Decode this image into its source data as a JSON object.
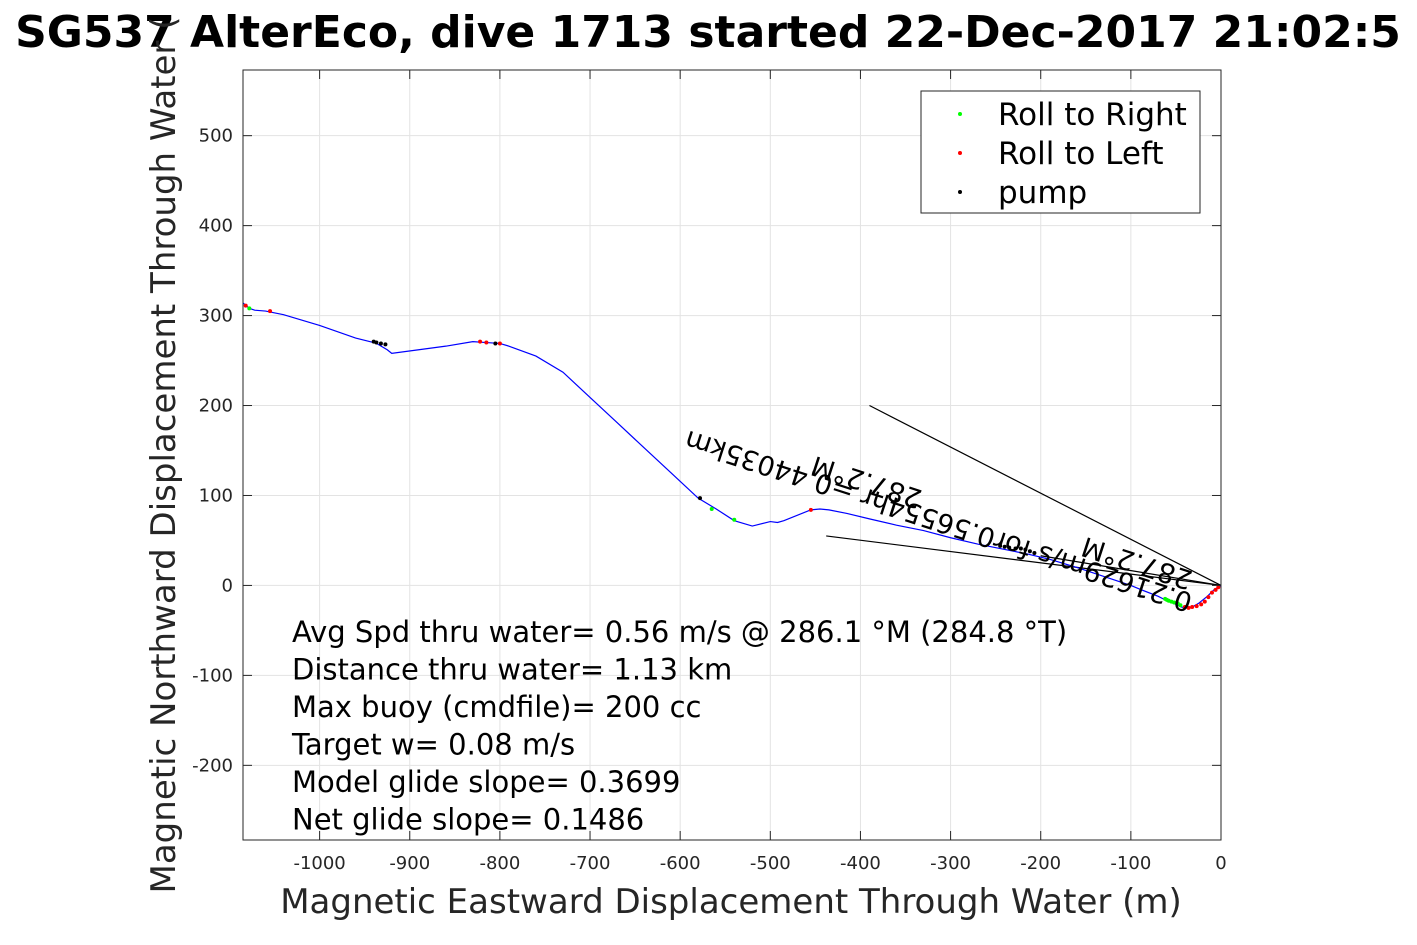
{
  "chart_data": {
    "type": "line",
    "title": "SG537 AlterEco, dive 1713 started 22-Dec-2017 21:02:5",
    "xlabel": "Magnetic Eastward Displacement Through Water (m)",
    "ylabel": "Magnetic Northward Displacement Through Water (",
    "xlim": [
      -1085,
      0
    ],
    "ylim": [
      -283,
      573
    ],
    "xticks": [
      -1000,
      -900,
      -800,
      -700,
      -600,
      -500,
      -400,
      -300,
      -200,
      -100,
      0
    ],
    "yticks": [
      -200,
      -100,
      0,
      100,
      200,
      300,
      400,
      500
    ],
    "grid": true,
    "legend": {
      "placement": "top-right",
      "entries": [
        {
          "label": "Roll to Right",
          "color": "#00ff00"
        },
        {
          "label": "Roll to Left",
          "color": "#ff0000"
        },
        {
          "label": "pump",
          "color": "#000000"
        }
      ]
    },
    "track": {
      "color": "#0000ff",
      "x": [
        0,
        -8,
        -15,
        -25,
        -32,
        -38,
        -44,
        -50,
        -58,
        -70,
        -88,
        -100,
        -130,
        -160,
        -190,
        -215,
        -240,
        -270,
        -300,
        -330,
        -360,
        -390,
        -415,
        -435,
        -445,
        -455,
        -485,
        -492,
        -500,
        -520,
        -540,
        -560,
        -580,
        -610,
        -640,
        -670,
        -700,
        -730,
        -760,
        -790,
        -800,
        -815,
        -830,
        -860,
        -890,
        -920,
        -925,
        -935,
        -940,
        -960,
        -1000,
        -1040,
        -1060,
        -1072,
        -1078,
        -1085
      ],
      "y": [
        0,
        -5,
        -12,
        -20,
        -24,
        -25,
        -24,
        -21,
        -18,
        -12,
        -5,
        0,
        10,
        20,
        29,
        35,
        40,
        46,
        53,
        61,
        67,
        74,
        80,
        84,
        85,
        84,
        72,
        70,
        71,
        66,
        72,
        85,
        97,
        125,
        153,
        181,
        209,
        237,
        255,
        266,
        269,
        270,
        271,
        266,
        262,
        258,
        262,
        268,
        270,
        275,
        289,
        301,
        305,
        306,
        308,
        314
      ]
    },
    "roll_right": {
      "x": [
        -40,
        -45,
        -48,
        -52,
        -55,
        -58,
        -60,
        -62,
        -565,
        -540,
        -1078
      ],
      "y": [
        -24,
        -22,
        -20,
        -19,
        -18,
        -17,
        -16,
        -15,
        85,
        73,
        308
      ]
    },
    "roll_left": {
      "x": [
        -3,
        -6,
        -10,
        -14,
        -18,
        -22,
        -27,
        -32,
        -36,
        -40,
        -455,
        -800,
        -815,
        -822,
        -1055,
        -1082
      ],
      "y": [
        -2,
        -5,
        -8,
        -13,
        -18,
        -21,
        -23,
        -24,
        -25,
        -24,
        84,
        269,
        270,
        271,
        305,
        311
      ]
    },
    "pump": {
      "x": [
        -245,
        -240,
        -235,
        -228,
        -222,
        -217,
        -212,
        -207,
        -578,
        -805,
        -927,
        -932,
        -937,
        -940
      ],
      "y": [
        44,
        43,
        42,
        41,
        41,
        40,
        38,
        36,
        97,
        269,
        268,
        269,
        270,
        271
      ]
    },
    "heading_lines": [
      {
        "x": [
          0,
          -390
        ],
        "y": [
          0,
          200
        ]
      },
      {
        "x": [
          0,
          -438
        ],
        "y": [
          0,
          55
        ]
      },
      {
        "x": [
          0,
          -200
        ],
        "y": [
          0,
          33
        ]
      }
    ],
    "annotations": [
      {
        "text": "0.21629m/s for0.56554hr =0.44035km",
        "x": -30,
        "y": -10,
        "angle_deg": 198
      },
      {
        "text": "287.2°M",
        "x": -30,
        "y": 15,
        "angle_deg": 198
      },
      {
        "text": "287.2°M",
        "x": -330,
        "y": 105,
        "angle_deg": 198
      }
    ],
    "stats": [
      "Avg Spd thru water=  0.56 m/s @ 286.1 °M (284.8 °T)",
      "Distance thru water=  1.13 km",
      "Max buoy (cmdfile)= 200 cc",
      "Target w= 0.08 m/s",
      "Model glide slope= 0.3699",
      "Net glide slope= 0.1486"
    ]
  }
}
